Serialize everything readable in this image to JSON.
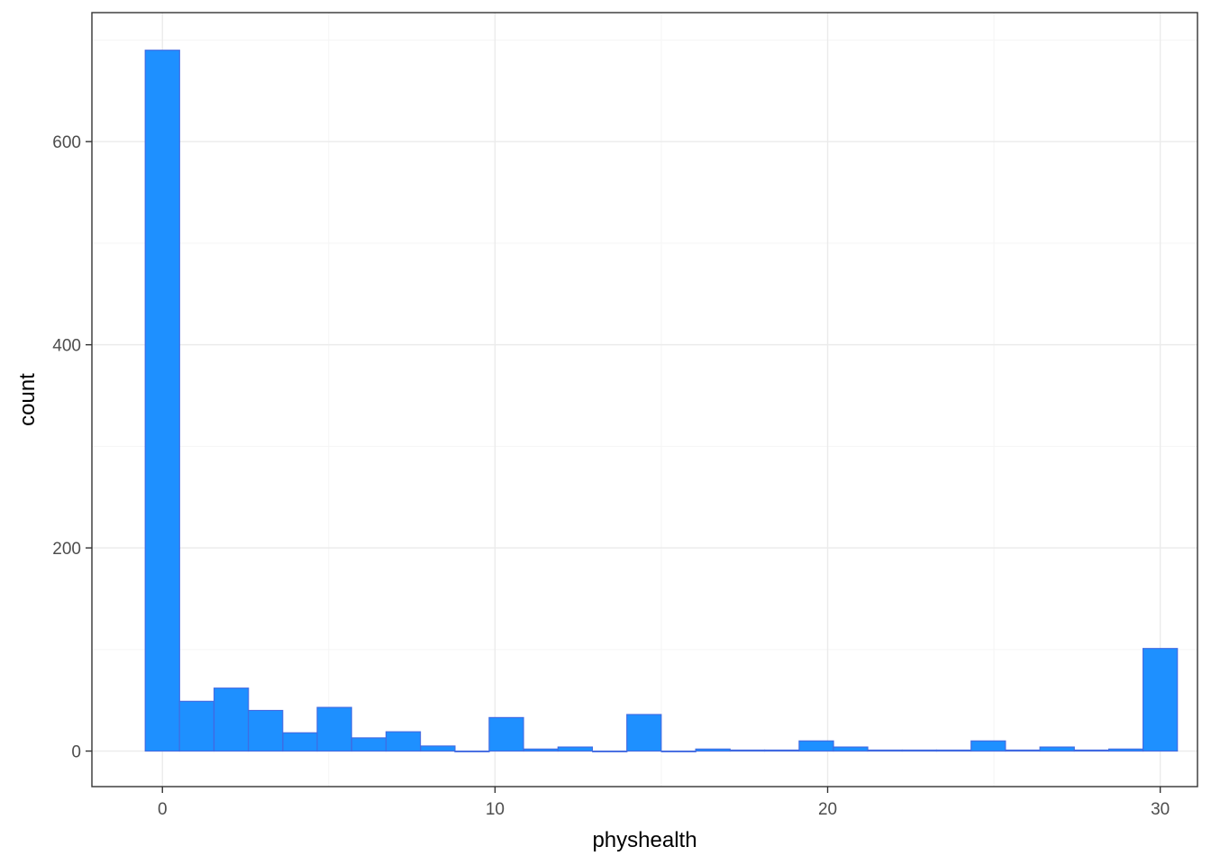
{
  "chart_data": {
    "type": "bar",
    "subtype": "histogram",
    "xlabel": "physhealth",
    "ylabel": "count",
    "xlim": [
      -2.12,
      31.12
    ],
    "ylim": [
      -35,
      727
    ],
    "x_ticks": [
      0,
      10,
      20,
      30
    ],
    "y_ticks": [
      0,
      200,
      400,
      600
    ],
    "x_tick_labels": [
      "0",
      "10",
      "20",
      "30"
    ],
    "y_tick_labels": [
      "0",
      "200",
      "400",
      "600"
    ],
    "grid": true,
    "legend": "none",
    "bin_width": 1.0345,
    "bin_centers": [
      0.0,
      1.03,
      2.07,
      3.1,
      4.14,
      5.17,
      6.21,
      7.24,
      8.28,
      9.31,
      10.34,
      11.38,
      12.41,
      13.45,
      14.48,
      15.52,
      16.55,
      17.59,
      18.62,
      19.66,
      20.69,
      21.72,
      22.76,
      23.79,
      24.83,
      25.86,
      26.9,
      27.93,
      28.97,
      30.0
    ],
    "values": [
      690,
      49,
      62,
      40,
      18,
      43,
      13,
      19,
      5,
      0,
      33,
      2,
      4,
      0,
      36,
      0,
      2,
      1,
      1,
      10,
      4,
      1,
      1,
      1,
      10,
      1,
      4,
      1,
      2,
      101
    ],
    "colors": {
      "bar_fill": "#1e90ff",
      "bar_stroke": "#4169e1",
      "panel_border": "#333333",
      "grid_major": "#ebebeb",
      "grid_minor": "#f5f5f5",
      "tick_text": "#4d4d4d",
      "axis_title": "#000000"
    }
  }
}
